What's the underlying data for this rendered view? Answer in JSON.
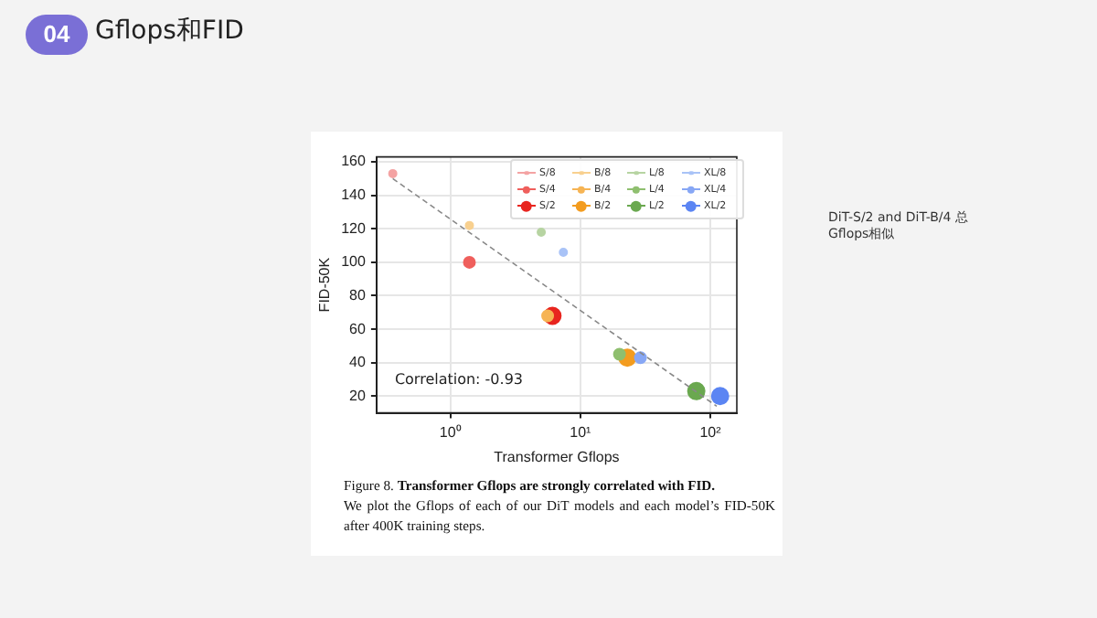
{
  "chart_data": {
    "type": "scatter",
    "title": "Gflops和FID",
    "xlabel": "Transformer Gflops",
    "ylabel": "FID-50K",
    "log": "x",
    "grid": true,
    "legend": "top right",
    "marker": "circle",
    "xlim": [
      0.27,
      160
    ],
    "xticks": [
      {
        "value": 1,
        "label": "10⁰"
      },
      {
        "value": 10,
        "label": "10¹"
      },
      {
        "value": 100,
        "label": "10²"
      }
    ],
    "ylim": [
      10,
      163
    ],
    "yticks": [
      20,
      40,
      60,
      80,
      100,
      120,
      140,
      160
    ],
    "annotations": [
      "04",
      "Correlation: -0.93",
      "Figure 8.",
      "Transformer Gflops are strongly correlated with FID.",
      "We plot the Gflops of each of our DiT models and each model’s FID-50K after 400K training steps.",
      "DiT-S/2 and DiT-B/4 总Gflops相似"
    ],
    "series": [
      {
        "name": "S/8",
        "color": "#f4a3a3",
        "x": [
          0.36
        ],
        "values": [
          153
        ]
      },
      {
        "name": "S/4",
        "color": "#ef5f5c",
        "x": [
          1.4
        ],
        "values": [
          100
        ]
      },
      {
        "name": "S/2",
        "color": "#e8251f",
        "x": [
          6.1
        ],
        "values": [
          68
        ]
      },
      {
        "name": "B/8",
        "color": "#f8d08f",
        "x": [
          1.4
        ],
        "values": [
          122
        ]
      },
      {
        "name": "B/4",
        "color": "#f6b454",
        "x": [
          5.6
        ],
        "values": [
          68
        ]
      },
      {
        "name": "B/2",
        "color": "#f39c1f",
        "x": [
          23
        ],
        "values": [
          43
        ]
      },
      {
        "name": "L/8",
        "color": "#b7d4a2",
        "x": [
          5
        ],
        "values": [
          118
        ]
      },
      {
        "name": "L/4",
        "color": "#8fbf6f",
        "x": [
          20
        ],
        "values": [
          45
        ]
      },
      {
        "name": "L/2",
        "color": "#6aa84f",
        "x": [
          78
        ],
        "values": [
          23
        ]
      },
      {
        "name": "XL/8",
        "color": "#a9c3f7",
        "x": [
          7.4
        ],
        "values": [
          106
        ]
      },
      {
        "name": "XL/4",
        "color": "#87a7f5",
        "x": [
          29
        ],
        "values": [
          43
        ]
      },
      {
        "name": "XL/2",
        "color": "#5b85f3",
        "x": [
          119
        ],
        "values": [
          20
        ]
      },
      {
        "type": "line",
        "line_style": "dashed",
        "marker": "none",
        "color": "#888888",
        "x": [
          0.36,
          112
        ],
        "values": [
          150,
          14
        ]
      }
    ]
  }
}
